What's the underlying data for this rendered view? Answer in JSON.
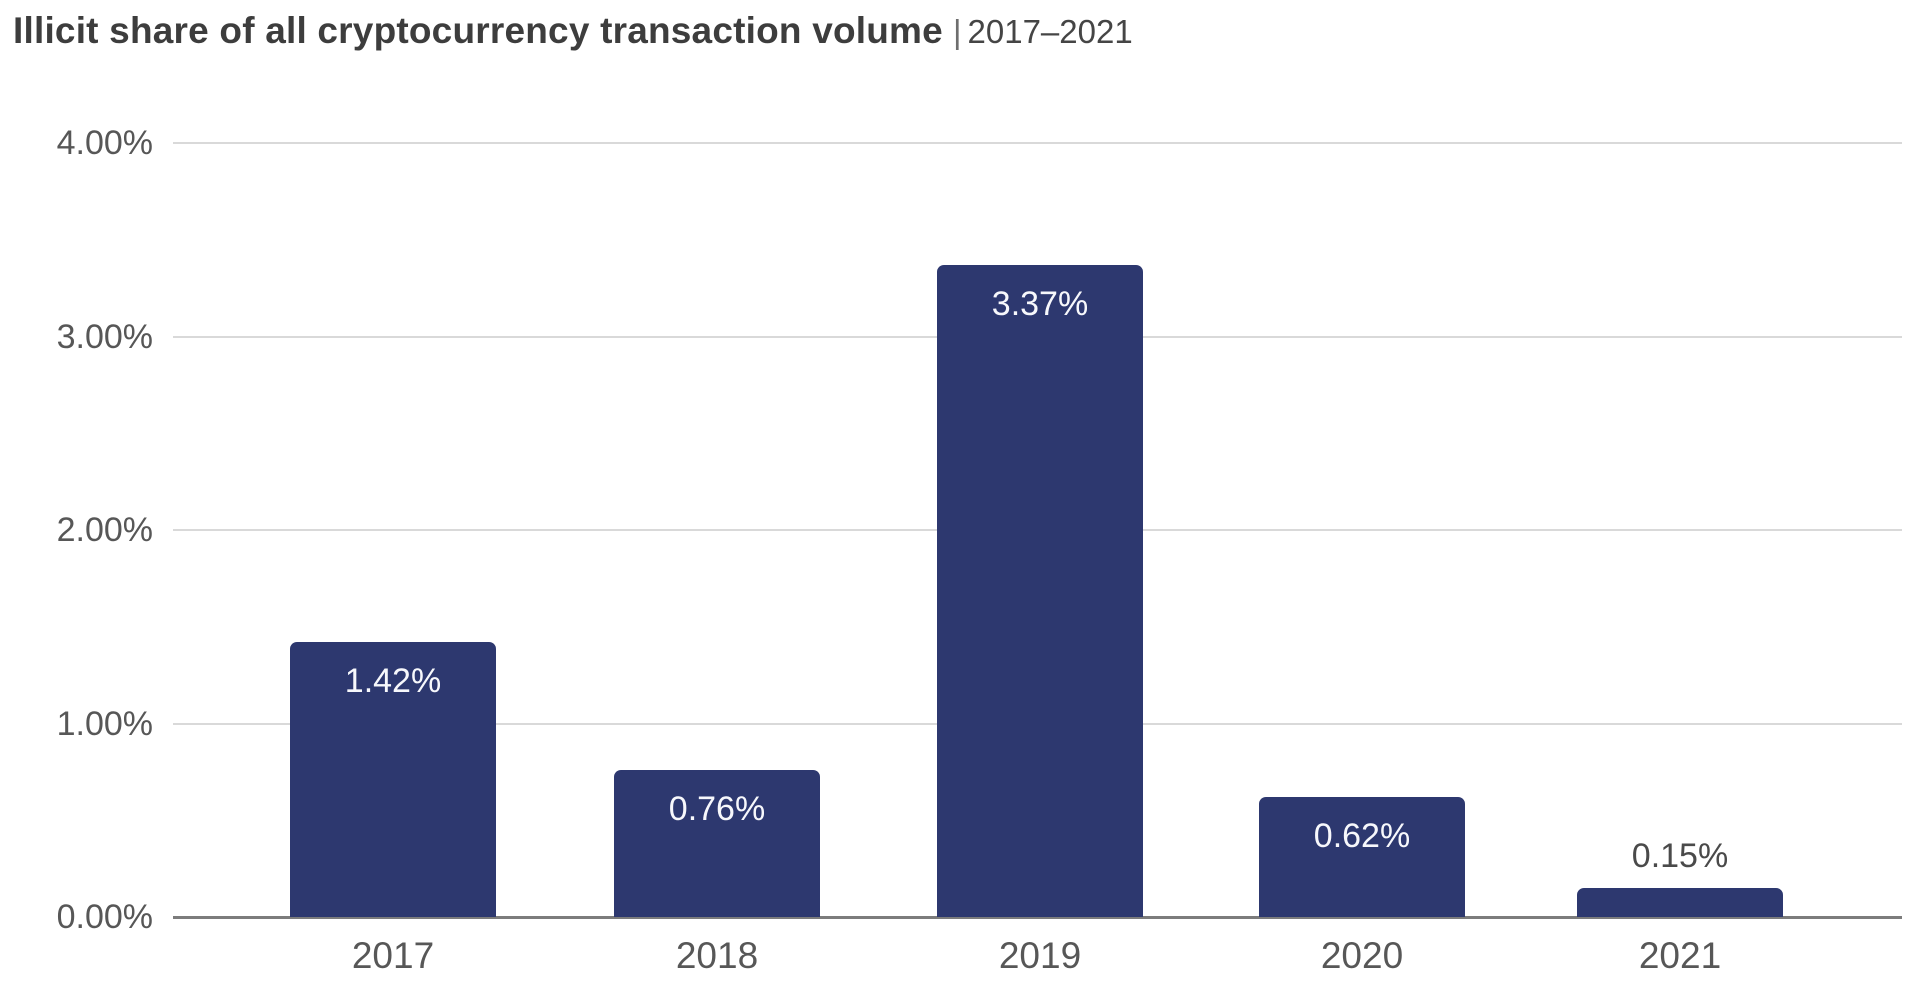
{
  "header": {
    "title": "Illicit share of all cryptocurrency transaction volume",
    "separator": "|",
    "subtitle": "2017–2021"
  },
  "colors": {
    "bar": "#2d386f",
    "title_text": "#3d3d3d",
    "subtitle_text": "#454545",
    "tick_text": "#575757",
    "gridline": "#d9d9d9",
    "axis_line": "#7c7c7c",
    "value_label_inside": "#f7f8fc",
    "value_label_outside": "#4a4a4a",
    "background": "#ffffff"
  },
  "chart_data": {
    "type": "bar",
    "title": "Illicit share of all cryptocurrency transaction volume",
    "subtitle": "2017–2021",
    "categories": [
      "2017",
      "2018",
      "2019",
      "2020",
      "2021"
    ],
    "values": [
      1.42,
      0.76,
      3.37,
      0.62,
      0.15
    ],
    "value_labels": [
      "1.42%",
      "0.76%",
      "3.37%",
      "0.62%",
      "0.15%"
    ],
    "xlabel": "",
    "ylabel": "",
    "ylim": [
      0,
      4
    ],
    "yticks": [
      0,
      1,
      2,
      3,
      4
    ],
    "ytick_labels": [
      "0.00%",
      "1.00%",
      "2.00%",
      "3.00%",
      "4.00%"
    ],
    "grid": "horizontal",
    "legend": "none",
    "value_label_placement": "inside-top, outside-above when bar is too short",
    "bar_unit": "percent of all cryptocurrency transaction volume"
  }
}
